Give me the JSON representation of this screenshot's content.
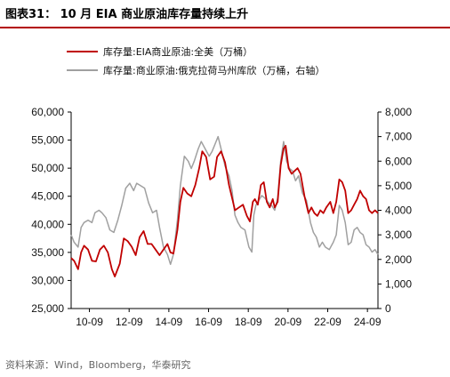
{
  "figure": {
    "title": "图表31：  10 月 EIA 商业原油库存量持续上升",
    "source": "资料来源：Wind，Bloomberg，华泰研究"
  },
  "colors": {
    "title_rule": "#b30000",
    "series_total": "#c00000",
    "series_cushing": "#a0a0a0",
    "axis": "#000000"
  },
  "chart_data": {
    "type": "line",
    "title": "",
    "xlabel": "",
    "ylabel": "",
    "ylabel_right": "",
    "x_ticks": [
      "10-09",
      "12-09",
      "14-09",
      "16-09",
      "18-09",
      "20-09",
      "22-09",
      "24-09"
    ],
    "x_range": [
      2009.75,
      2025.2
    ],
    "ylim": [
      25000,
      60000
    ],
    "y_ticks": [
      25000,
      30000,
      35000,
      40000,
      45000,
      50000,
      55000,
      60000
    ],
    "y_tick_labels": [
      "25,000",
      "30,000",
      "35,000",
      "40,000",
      "45,000",
      "50,000",
      "55,000",
      "60,000"
    ],
    "ylim_right": [
      0,
      8000
    ],
    "y_ticks_right": [
      0,
      1000,
      2000,
      3000,
      4000,
      5000,
      6000,
      7000,
      8000
    ],
    "y_tick_labels_right": [
      "0",
      "1,000",
      "2,000",
      "3,000",
      "4,000",
      "5,000",
      "6,000",
      "7,000",
      "8,000"
    ],
    "legend_position": "top-left",
    "series": [
      {
        "name": "库存量:EIA商业原油:全美（万桶）",
        "axis": "left",
        "points": [
          [
            2009.75,
            34000
          ],
          [
            2009.9,
            33500
          ],
          [
            2010.1,
            32000
          ],
          [
            2010.25,
            35000
          ],
          [
            2010.4,
            36200
          ],
          [
            2010.6,
            35500
          ],
          [
            2010.8,
            33500
          ],
          [
            2011.0,
            33400
          ],
          [
            2011.2,
            35500
          ],
          [
            2011.4,
            36200
          ],
          [
            2011.6,
            35000
          ],
          [
            2011.8,
            32000
          ],
          [
            2011.95,
            30700
          ],
          [
            2012.2,
            33000
          ],
          [
            2012.4,
            37500
          ],
          [
            2012.6,
            37000
          ],
          [
            2012.8,
            36000
          ],
          [
            2013.0,
            34500
          ],
          [
            2013.2,
            37700
          ],
          [
            2013.4,
            38800
          ],
          [
            2013.6,
            36500
          ],
          [
            2013.8,
            36500
          ],
          [
            2014.0,
            35500
          ],
          [
            2014.2,
            34500
          ],
          [
            2014.4,
            35500
          ],
          [
            2014.6,
            36500
          ],
          [
            2014.75,
            35000
          ],
          [
            2014.9,
            34800
          ],
          [
            2015.1,
            39000
          ],
          [
            2015.25,
            44000
          ],
          [
            2015.4,
            46500
          ],
          [
            2015.6,
            45500
          ],
          [
            2015.8,
            45000
          ],
          [
            2016.0,
            47000
          ],
          [
            2016.2,
            50000
          ],
          [
            2016.35,
            53000
          ],
          [
            2016.55,
            52000
          ],
          [
            2016.75,
            48000
          ],
          [
            2016.95,
            48500
          ],
          [
            2017.1,
            52000
          ],
          [
            2017.3,
            53000
          ],
          [
            2017.5,
            51000
          ],
          [
            2017.7,
            47000
          ],
          [
            2017.9,
            44000
          ],
          [
            2018.0,
            42500
          ],
          [
            2018.2,
            43000
          ],
          [
            2018.4,
            43500
          ],
          [
            2018.6,
            41500
          ],
          [
            2018.75,
            40500
          ],
          [
            2018.9,
            44000
          ],
          [
            2019.0,
            44500
          ],
          [
            2019.15,
            43500
          ],
          [
            2019.3,
            47000
          ],
          [
            2019.45,
            47500
          ],
          [
            2019.6,
            44000
          ],
          [
            2019.75,
            43000
          ],
          [
            2019.9,
            44500
          ],
          [
            2020.0,
            43000
          ],
          [
            2020.15,
            44000
          ],
          [
            2020.3,
            50500
          ],
          [
            2020.45,
            53500
          ],
          [
            2020.55,
            54000
          ],
          [
            2020.7,
            50000
          ],
          [
            2020.85,
            49000
          ],
          [
            2021.0,
            49500
          ],
          [
            2021.15,
            50000
          ],
          [
            2021.3,
            49000
          ],
          [
            2021.5,
            45000
          ],
          [
            2021.7,
            42000
          ],
          [
            2021.85,
            43000
          ],
          [
            2022.0,
            42000
          ],
          [
            2022.15,
            41500
          ],
          [
            2022.3,
            42500
          ],
          [
            2022.45,
            42000
          ],
          [
            2022.6,
            43000
          ],
          [
            2022.8,
            44000
          ],
          [
            2022.95,
            42000
          ],
          [
            2023.1,
            44000
          ],
          [
            2023.25,
            48000
          ],
          [
            2023.4,
            47500
          ],
          [
            2023.55,
            46000
          ],
          [
            2023.7,
            42000
          ],
          [
            2023.85,
            42500
          ],
          [
            2024.0,
            43500
          ],
          [
            2024.15,
            44500
          ],
          [
            2024.3,
            46000
          ],
          [
            2024.45,
            45000
          ],
          [
            2024.6,
            44500
          ],
          [
            2024.75,
            42500
          ],
          [
            2024.9,
            42000
          ],
          [
            2025.05,
            42500
          ],
          [
            2025.2,
            42000
          ]
        ]
      },
      {
        "name": "库存量:商业原油:俄克拉荷马州库欣（万桶，右轴）",
        "axis": "right",
        "points": [
          [
            2009.75,
            3000
          ],
          [
            2009.9,
            2700
          ],
          [
            2010.1,
            2500
          ],
          [
            2010.25,
            3300
          ],
          [
            2010.4,
            3500
          ],
          [
            2010.6,
            3600
          ],
          [
            2010.8,
            3500
          ],
          [
            2010.95,
            3900
          ],
          [
            2011.15,
            4000
          ],
          [
            2011.3,
            3900
          ],
          [
            2011.5,
            3700
          ],
          [
            2011.7,
            3200
          ],
          [
            2011.9,
            3100
          ],
          [
            2012.1,
            3600
          ],
          [
            2012.3,
            4200
          ],
          [
            2012.5,
            4900
          ],
          [
            2012.7,
            5100
          ],
          [
            2012.9,
            4800
          ],
          [
            2013.05,
            5100
          ],
          [
            2013.25,
            5000
          ],
          [
            2013.45,
            4900
          ],
          [
            2013.65,
            4300
          ],
          [
            2013.85,
            3900
          ],
          [
            2014.05,
            4000
          ],
          [
            2014.2,
            3300
          ],
          [
            2014.4,
            2500
          ],
          [
            2014.6,
            2200
          ],
          [
            2014.75,
            1800
          ],
          [
            2014.9,
            2200
          ],
          [
            2015.1,
            3600
          ],
          [
            2015.25,
            5000
          ],
          [
            2015.45,
            6200
          ],
          [
            2015.65,
            6000
          ],
          [
            2015.8,
            5700
          ],
          [
            2015.95,
            6000
          ],
          [
            2016.15,
            6500
          ],
          [
            2016.3,
            6800
          ],
          [
            2016.5,
            6500
          ],
          [
            2016.7,
            6200
          ],
          [
            2016.85,
            6400
          ],
          [
            2017.0,
            6700
          ],
          [
            2017.15,
            7000
          ],
          [
            2017.3,
            6500
          ],
          [
            2017.5,
            5800
          ],
          [
            2017.7,
            5400
          ],
          [
            2017.85,
            4800
          ],
          [
            2018.0,
            3800
          ],
          [
            2018.15,
            3500
          ],
          [
            2018.3,
            3300
          ],
          [
            2018.5,
            3200
          ],
          [
            2018.7,
            2500
          ],
          [
            2018.85,
            2300
          ],
          [
            2018.95,
            3800
          ],
          [
            2019.05,
            4200
          ],
          [
            2019.2,
            4400
          ],
          [
            2019.35,
            4600
          ],
          [
            2019.5,
            4500
          ],
          [
            2019.7,
            4300
          ],
          [
            2019.85,
            4200
          ],
          [
            2020.0,
            4000
          ],
          [
            2020.15,
            4500
          ],
          [
            2020.3,
            6000
          ],
          [
            2020.45,
            6800
          ],
          [
            2020.6,
            6000
          ],
          [
            2020.75,
            5700
          ],
          [
            2020.9,
            5600
          ],
          [
            2021.05,
            5200
          ],
          [
            2021.2,
            5400
          ],
          [
            2021.4,
            4700
          ],
          [
            2021.6,
            4400
          ],
          [
            2021.8,
            3500
          ],
          [
            2021.95,
            3100
          ],
          [
            2022.1,
            2900
          ],
          [
            2022.25,
            2500
          ],
          [
            2022.4,
            2700
          ],
          [
            2022.55,
            2500
          ],
          [
            2022.75,
            2400
          ],
          [
            2022.95,
            2700
          ],
          [
            2023.1,
            3000
          ],
          [
            2023.25,
            4200
          ],
          [
            2023.4,
            4000
          ],
          [
            2023.55,
            3500
          ],
          [
            2023.7,
            2600
          ],
          [
            2023.85,
            2700
          ],
          [
            2024.0,
            3200
          ],
          [
            2024.15,
            3300
          ],
          [
            2024.3,
            3100
          ],
          [
            2024.45,
            3000
          ],
          [
            2024.6,
            2600
          ],
          [
            2024.75,
            2500
          ],
          [
            2024.9,
            2300
          ],
          [
            2025.05,
            2400
          ],
          [
            2025.2,
            2200
          ]
        ]
      }
    ]
  }
}
